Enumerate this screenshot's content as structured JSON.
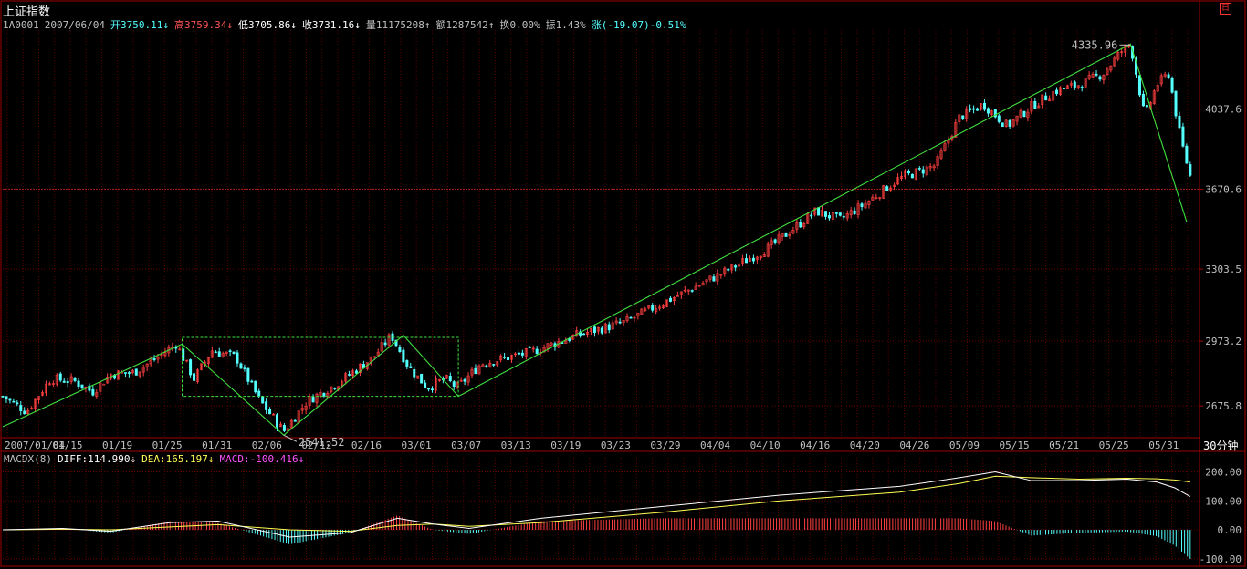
{
  "header": {
    "title": "上证指数",
    "quote": [
      {
        "text": "1A0001",
        "color": "#c0c0c0"
      },
      {
        "text": "2007/06/04",
        "color": "#c0c0c0"
      },
      {
        "text": "开3750.11↓",
        "color": "#54ffff"
      },
      {
        "text": "高3759.34↓",
        "color": "#ff5454"
      },
      {
        "text": "低3705.86↓",
        "color": "#ffffff"
      },
      {
        "text": "收3731.16↓",
        "color": "#ffffff"
      },
      {
        "text": "量11175208↑",
        "color": "#c0c0c0"
      },
      {
        "text": "额1287542↑",
        "color": "#c0c0c0"
      },
      {
        "text": "换0.00%",
        "color": "#c0c0c0"
      },
      {
        "text": "振1.43%",
        "color": "#c0c0c0"
      },
      {
        "text": "涨(-19.07)-0.51%",
        "color": "#54ffff"
      }
    ]
  },
  "chart_data": [
    {
      "type": "candlestick",
      "title": "上证指数",
      "period_label": "30分钟",
      "ylim": [
        2530,
        4400
      ],
      "y_ticks": [
        2675.8,
        2973.2,
        3303.5,
        3670.6,
        4037.6
      ],
      "y_tick_labels": [
        "2675.8",
        "2973.2",
        "3303.5",
        "3670.6",
        "4037.6"
      ],
      "x_tick_labels": [
        "2007/01/04",
        "01/15",
        "01/19",
        "01/25",
        "01/31",
        "02/06",
        "02/12",
        "02/16",
        "03/01",
        "03/07",
        "03/13",
        "03/19",
        "03/23",
        "03/29",
        "04/04",
        "04/10",
        "04/16",
        "04/20",
        "04/26",
        "05/09",
        "05/15",
        "05/21",
        "05/25",
        "05/31"
      ],
      "reference_line": 3670.6,
      "annotations": [
        {
          "text": "4335.96",
          "value": 4335.96,
          "type": "high"
        },
        {
          "text": "2541.52",
          "value": 2541.52,
          "type": "low"
        }
      ],
      "price_path": [
        {
          "x": 0.0,
          "y": 2720
        },
        {
          "x": 0.02,
          "y": 2650
        },
        {
          "x": 0.04,
          "y": 2800
        },
        {
          "x": 0.06,
          "y": 2790
        },
        {
          "x": 0.075,
          "y": 2740
        },
        {
          "x": 0.09,
          "y": 2820
        },
        {
          "x": 0.11,
          "y": 2830
        },
        {
          "x": 0.13,
          "y": 2900
        },
        {
          "x": 0.145,
          "y": 2960
        },
        {
          "x": 0.16,
          "y": 2800
        },
        {
          "x": 0.175,
          "y": 2930
        },
        {
          "x": 0.195,
          "y": 2900
        },
        {
          "x": 0.215,
          "y": 2700
        },
        {
          "x": 0.235,
          "y": 2560
        },
        {
          "x": 0.255,
          "y": 2700
        },
        {
          "x": 0.28,
          "y": 2780
        },
        {
          "x": 0.31,
          "y": 2900
        },
        {
          "x": 0.325,
          "y": 3000
        },
        {
          "x": 0.34,
          "y": 2850
        },
        {
          "x": 0.355,
          "y": 2760
        },
        {
          "x": 0.37,
          "y": 2800
        },
        {
          "x": 0.38,
          "y": 2760
        },
        {
          "x": 0.4,
          "y": 2870
        },
        {
          "x": 0.44,
          "y": 2920
        },
        {
          "x": 0.48,
          "y": 3000
        },
        {
          "x": 0.52,
          "y": 3060
        },
        {
          "x": 0.56,
          "y": 3170
        },
        {
          "x": 0.6,
          "y": 3280
        },
        {
          "x": 0.64,
          "y": 3400
        },
        {
          "x": 0.68,
          "y": 3570
        },
        {
          "x": 0.7,
          "y": 3530
        },
        {
          "x": 0.72,
          "y": 3600
        },
        {
          "x": 0.75,
          "y": 3720
        },
        {
          "x": 0.78,
          "y": 3780
        },
        {
          "x": 0.8,
          "y": 4000
        },
        {
          "x": 0.82,
          "y": 4060
        },
        {
          "x": 0.84,
          "y": 3960
        },
        {
          "x": 0.86,
          "y": 4050
        },
        {
          "x": 0.88,
          "y": 4120
        },
        {
          "x": 0.9,
          "y": 4150
        },
        {
          "x": 0.92,
          "y": 4200
        },
        {
          "x": 0.935,
          "y": 4300
        },
        {
          "x": 0.943,
          "y": 4335.96
        },
        {
          "x": 0.955,
          "y": 4000
        },
        {
          "x": 0.965,
          "y": 4150
        },
        {
          "x": 0.975,
          "y": 4200
        },
        {
          "x": 0.985,
          "y": 3900
        },
        {
          "x": 0.993,
          "y": 3731.16
        }
      ],
      "trend_lines": [
        {
          "points": [
            {
              "x": 0.0,
              "y": 2580
            },
            {
              "x": 0.15,
              "y": 2960
            },
            {
              "x": 0.235,
              "y": 2541.52
            },
            {
              "x": 0.335,
              "y": 3000
            },
            {
              "x": 0.381,
              "y": 2720
            },
            {
              "x": 0.943,
              "y": 4335.96
            },
            {
              "x": 0.99,
              "y": 3520
            }
          ]
        }
      ],
      "box": {
        "x": [
          0.15,
          0.381
        ],
        "y": [
          2720,
          2990
        ]
      }
    },
    {
      "type": "macd",
      "title": "MACDX(8)",
      "series": [
        {
          "name": "DIFF",
          "value": 114.99,
          "trend": "↓",
          "color": "#ffffff"
        },
        {
          "name": "DEA",
          "value": 165.197,
          "trend": "↓",
          "color": "#ffff54"
        },
        {
          "name": "MACD",
          "value": -100.416,
          "trend": "↓",
          "color": "#ff54ff"
        }
      ],
      "ylim": [
        -110,
        230
      ],
      "y_ticks": [
        200,
        100,
        0,
        -100
      ],
      "y_tick_labels": [
        "200.00",
        "100.00",
        "0.00",
        "-100.00"
      ],
      "diff_path": [
        {
          "x": 0.0,
          "y": 0
        },
        {
          "x": 0.05,
          "y": 5
        },
        {
          "x": 0.09,
          "y": -5
        },
        {
          "x": 0.14,
          "y": 25
        },
        {
          "x": 0.18,
          "y": 30
        },
        {
          "x": 0.24,
          "y": -25
        },
        {
          "x": 0.29,
          "y": -10
        },
        {
          "x": 0.33,
          "y": 40
        },
        {
          "x": 0.36,
          "y": 20
        },
        {
          "x": 0.39,
          "y": 5
        },
        {
          "x": 0.45,
          "y": 40
        },
        {
          "x": 0.55,
          "y": 80
        },
        {
          "x": 0.65,
          "y": 120
        },
        {
          "x": 0.75,
          "y": 150
        },
        {
          "x": 0.8,
          "y": 180
        },
        {
          "x": 0.83,
          "y": 200
        },
        {
          "x": 0.86,
          "y": 170
        },
        {
          "x": 0.9,
          "y": 170
        },
        {
          "x": 0.94,
          "y": 175
        },
        {
          "x": 0.965,
          "y": 165
        },
        {
          "x": 0.98,
          "y": 145
        },
        {
          "x": 0.993,
          "y": 114.99
        }
      ],
      "dea_path": [
        {
          "x": 0.0,
          "y": 0
        },
        {
          "x": 0.05,
          "y": 2
        },
        {
          "x": 0.09,
          "y": 0
        },
        {
          "x": 0.14,
          "y": 10
        },
        {
          "x": 0.18,
          "y": 18
        },
        {
          "x": 0.24,
          "y": 0
        },
        {
          "x": 0.29,
          "y": -5
        },
        {
          "x": 0.33,
          "y": 15
        },
        {
          "x": 0.36,
          "y": 20
        },
        {
          "x": 0.39,
          "y": 12
        },
        {
          "x": 0.45,
          "y": 25
        },
        {
          "x": 0.55,
          "y": 60
        },
        {
          "x": 0.65,
          "y": 100
        },
        {
          "x": 0.75,
          "y": 130
        },
        {
          "x": 0.8,
          "y": 160
        },
        {
          "x": 0.83,
          "y": 185
        },
        {
          "x": 0.86,
          "y": 180
        },
        {
          "x": 0.9,
          "y": 175
        },
        {
          "x": 0.94,
          "y": 178
        },
        {
          "x": 0.965,
          "y": 176
        },
        {
          "x": 0.98,
          "y": 172
        },
        {
          "x": 0.993,
          "y": 165.197
        }
      ]
    }
  ]
}
